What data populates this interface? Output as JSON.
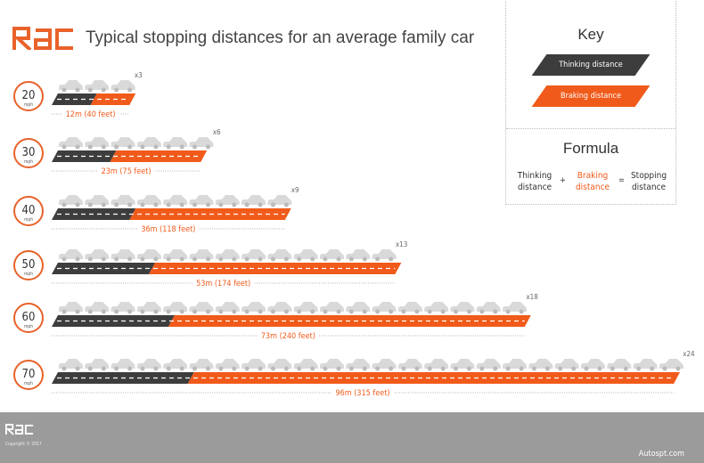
{
  "header": {
    "logo_text": "RAC",
    "title": "Typical stopping distances for an average family car"
  },
  "colors": {
    "thinking": "#3d3d3d",
    "braking": "#f05a1a",
    "car": "#d9d9d9",
    "footer": "#9b9b9b"
  },
  "key": {
    "title": "Key",
    "thinking_label": "Thinking distance",
    "braking_label": "Braking distance"
  },
  "formula": {
    "title": "Formula",
    "term1": "Thinking distance",
    "plus": "+",
    "term2": "Braking distance",
    "equals": "=",
    "result": "Stopping distance"
  },
  "chart_data": {
    "type": "bar",
    "orientation": "horizontal-stacked",
    "categories": [
      "20",
      "30",
      "40",
      "50",
      "60",
      "70"
    ],
    "unit_label": "mph",
    "series": [
      {
        "name": "Thinking distance",
        "values": [
          6,
          9,
          12,
          15,
          18,
          21
        ]
      },
      {
        "name": "Braking distance",
        "values": [
          6,
          14,
          24,
          38,
          55,
          75
        ]
      }
    ],
    "total_labels": [
      "12m (40 feet)",
      "23m (75 feet)",
      "36m (118 feet)",
      "53m (174 feet)",
      "73m (240 feet)",
      "96m (315 feet)"
    ],
    "car_lengths": [
      "x3",
      "x6",
      "x9",
      "x13",
      "x18",
      "x24"
    ],
    "car_counts": [
      3,
      6,
      9,
      13,
      18,
      24
    ],
    "xlim": [
      0,
      96
    ]
  },
  "footer": {
    "logo_text": "RAC",
    "copyright": "Copyright © 2017",
    "site": "Autospt.com"
  }
}
